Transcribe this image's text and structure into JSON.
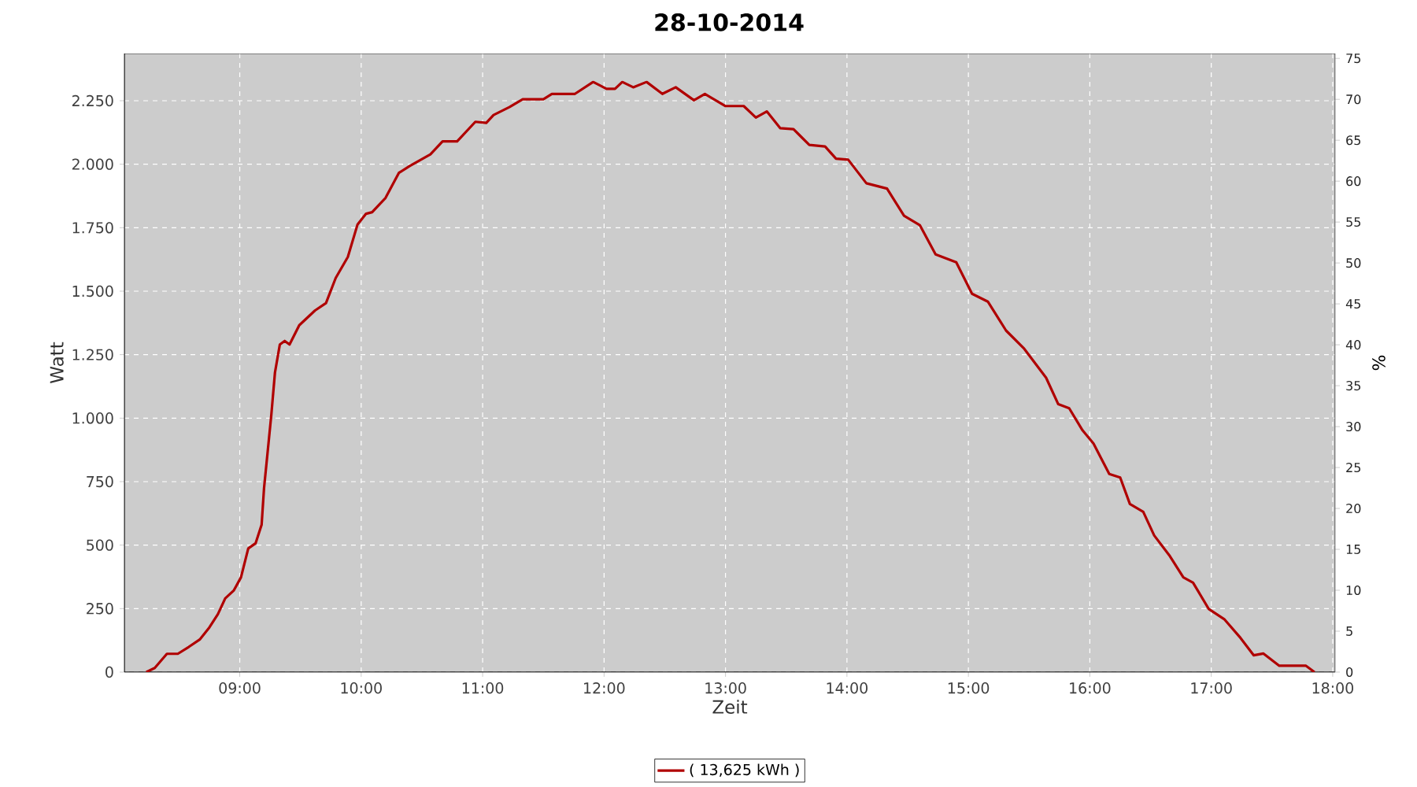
{
  "chart_data": {
    "type": "line",
    "title": "28-10-2014",
    "xlabel": "Zeit",
    "ylabel": "Watt",
    "y2label": "%",
    "xlim": [
      8.05,
      18.02
    ],
    "xticks": [
      {
        "value": 9,
        "label": "09:00"
      },
      {
        "value": 10,
        "label": "10:00"
      },
      {
        "value": 11,
        "label": "11:00"
      },
      {
        "value": 12,
        "label": "12:00"
      },
      {
        "value": 13,
        "label": "13:00"
      },
      {
        "value": 14,
        "label": "14:00"
      },
      {
        "value": 15,
        "label": "15:00"
      },
      {
        "value": 16,
        "label": "16:00"
      },
      {
        "value": 17,
        "label": "17:00"
      },
      {
        "value": 18,
        "label": "18:00"
      }
    ],
    "ylim": [
      0,
      2436
    ],
    "yticks": [
      0,
      250,
      500,
      750,
      {
        "value": 1000,
        "label": "1.000"
      },
      {
        "value": 1250,
        "label": "1.250"
      },
      {
        "value": 1500,
        "label": "1.500"
      },
      {
        "value": 1750,
        "label": "1.750"
      },
      {
        "value": 2000,
        "label": "2.000"
      },
      {
        "value": 2250,
        "label": "2.250"
      }
    ],
    "y2lim": [
      0,
      75.6
    ],
    "y2ticks": [
      0,
      5,
      10,
      15,
      20,
      25,
      30,
      35,
      40,
      45,
      50,
      55,
      60,
      65,
      70,
      75
    ],
    "grid": true,
    "legend": "bottom",
    "marker": "none",
    "line_style": "solid",
    "series": [
      {
        "name": "( 13,625 kWh )",
        "color": "#b00000",
        "x": [
          8.23,
          8.3,
          8.4,
          8.49,
          8.58,
          8.67,
          8.75,
          8.82,
          8.88,
          8.95,
          9.01,
          9.07,
          9.13,
          9.18,
          9.2,
          9.23,
          9.26,
          9.29,
          9.33,
          9.37,
          9.41,
          9.49,
          9.62,
          9.71,
          9.79,
          9.89,
          9.97,
          10.04,
          10.09,
          10.2,
          10.31,
          10.4,
          10.57,
          10.67,
          10.79,
          10.94,
          11.03,
          11.09,
          11.22,
          11.33,
          11.5,
          11.57,
          11.76,
          11.91,
          12.02,
          12.09,
          12.15,
          12.24,
          12.35,
          12.48,
          12.59,
          12.74,
          12.83,
          13.0,
          13.15,
          13.25,
          13.34,
          13.45,
          13.56,
          13.69,
          13.82,
          13.91,
          14.01,
          14.16,
          14.33,
          14.47,
          14.6,
          14.73,
          14.9,
          15.03,
          15.16,
          15.31,
          15.46,
          15.64,
          15.74,
          15.83,
          15.94,
          16.03,
          16.16,
          16.25,
          16.33,
          16.44,
          16.53,
          16.66,
          16.77,
          16.85,
          16.98,
          17.11,
          17.24,
          17.35,
          17.43,
          17.56,
          17.78,
          17.85
        ],
        "values": [
          0,
          16,
          72,
          72,
          99,
          128,
          176,
          228,
          290,
          321,
          373,
          487,
          507,
          580,
          725,
          869,
          1014,
          1180,
          1290,
          1304,
          1290,
          1366,
          1424,
          1453,
          1552,
          1635,
          1763,
          1805,
          1811,
          1867,
          1966,
          1993,
          2039,
          2090,
          2090,
          2167,
          2163,
          2194,
          2225,
          2256,
          2256,
          2277,
          2277,
          2324,
          2297,
          2297,
          2324,
          2303,
          2324,
          2277,
          2303,
          2252,
          2277,
          2229,
          2229,
          2184,
          2208,
          2142,
          2138,
          2076,
          2070,
          2022,
          2018,
          1925,
          1904,
          1797,
          1760,
          1645,
          1614,
          1490,
          1459,
          1345,
          1273,
          1159,
          1055,
          1039,
          952,
          900,
          780,
          766,
          662,
          631,
          538,
          456,
          373,
          352,
          248,
          207,
          135,
          66,
          73,
          25,
          25,
          0
        ]
      }
    ]
  }
}
